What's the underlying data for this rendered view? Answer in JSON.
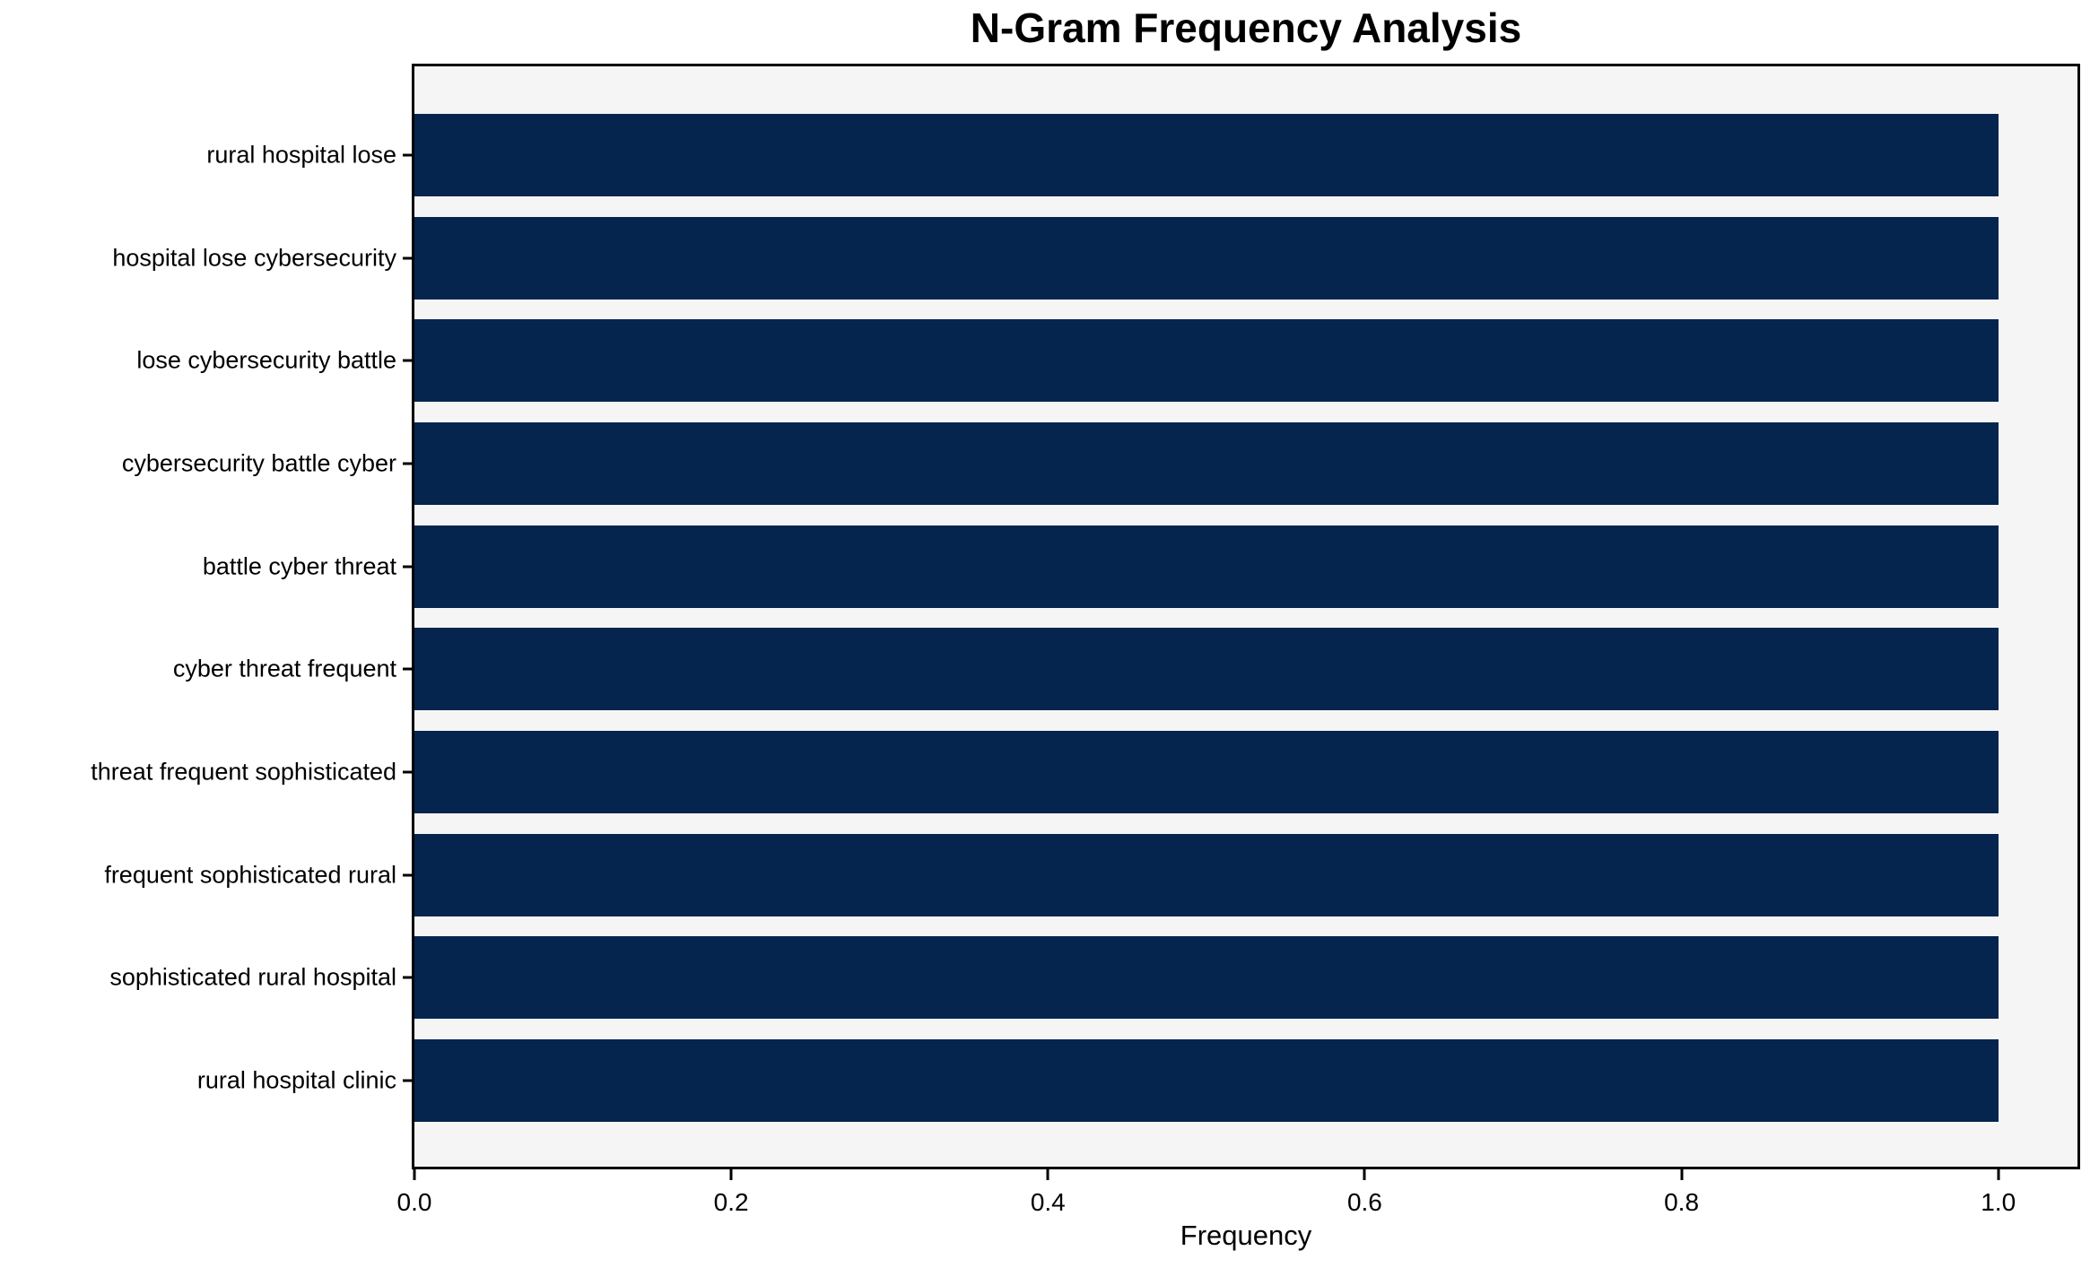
{
  "chart_data": {
    "type": "bar",
    "orientation": "horizontal",
    "title": "N-Gram Frequency Analysis",
    "xlabel": "Frequency",
    "ylabel": "",
    "categories": [
      "rural hospital lose",
      "hospital lose cybersecurity",
      "lose cybersecurity battle",
      "cybersecurity battle cyber",
      "battle cyber threat",
      "cyber threat frequent",
      "threat frequent sophisticated",
      "frequent sophisticated rural",
      "sophisticated rural hospital",
      "rural hospital clinic"
    ],
    "values": [
      1.0,
      1.0,
      1.0,
      1.0,
      1.0,
      1.0,
      1.0,
      1.0,
      1.0,
      1.0
    ],
    "xticks": [
      "0.0",
      "0.2",
      "0.4",
      "0.6",
      "0.8",
      "1.0"
    ],
    "xlim": [
      0,
      1.05
    ],
    "grid": false,
    "legend": "none",
    "bar_color": "#05254e",
    "plot_background": "#f5f5f5",
    "figure_background": "#ffffff",
    "spine_color": "#000000"
  }
}
